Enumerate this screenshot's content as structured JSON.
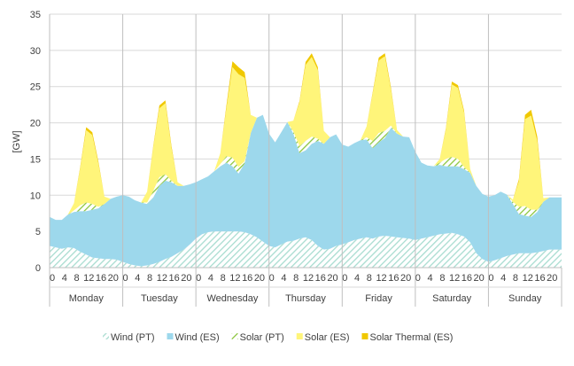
{
  "chart_data": {
    "type": "area",
    "stacked": true,
    "ylabel": "[GW]",
    "ylim": [
      0,
      35
    ],
    "yticks": [
      0,
      5,
      10,
      15,
      20,
      25,
      30,
      35
    ],
    "grid": "horizontal",
    "legend_position": "bottom",
    "days": [
      "Monday",
      "Tuesday",
      "Wednesday",
      "Thursday",
      "Friday",
      "Saturday",
      "Sunday"
    ],
    "hour_ticks": [
      "0",
      "4",
      "8",
      "12",
      "16",
      "20"
    ],
    "hours_per_day": 24,
    "sample_hours": [
      0,
      2,
      4,
      6,
      8,
      10,
      12,
      14,
      16,
      18,
      20,
      22
    ],
    "series": [
      {
        "name": "Wind (PT)",
        "color": "#a8dcd0",
        "pattern": "hatch",
        "values": [
          [
            3.0,
            2.8,
            2.6,
            2.8,
            2.7,
            2.2,
            1.8,
            1.4,
            1.3,
            1.2,
            1.2,
            1.1
          ],
          [
            0.8,
            0.5,
            0.3,
            0.2,
            0.3,
            0.5,
            0.8,
            1.2,
            1.5,
            2.0,
            2.5,
            3.2
          ],
          [
            4.0,
            4.6,
            4.9,
            5.0,
            5.0,
            5.0,
            5.0,
            5.0,
            4.9,
            4.6,
            4.2,
            3.6
          ],
          [
            3.0,
            2.8,
            3.2,
            3.6,
            3.7,
            4.0,
            4.2,
            3.8,
            3.0,
            2.5,
            2.6,
            3.0
          ],
          [
            3.2,
            3.5,
            3.8,
            4.0,
            4.2,
            4.0,
            4.3,
            4.4,
            4.3,
            4.2,
            4.1,
            4.0
          ],
          [
            3.8,
            4.0,
            4.2,
            4.4,
            4.6,
            4.7,
            4.8,
            4.6,
            4.3,
            3.5,
            2.0,
            1.2
          ],
          [
            0.8,
            1.0,
            1.3,
            1.6,
            1.8,
            2.0,
            2.0,
            2.0,
            2.1,
            2.3,
            2.5,
            2.5
          ]
        ]
      },
      {
        "name": "Wind (ES)",
        "color": "#9dd8ec",
        "values": [
          [
            4.0,
            3.8,
            4.0,
            4.5,
            5.0,
            5.6,
            6.0,
            6.6,
            6.9,
            7.6,
            8.3,
            8.7
          ],
          [
            9.2,
            9.3,
            9.0,
            8.8,
            8.5,
            9.2,
            10.5,
            10.8,
            10.3,
            9.3,
            8.8,
            8.3
          ],
          [
            7.8,
            7.6,
            7.7,
            8.3,
            9.0,
            9.5,
            9.0,
            8.0,
            9.5,
            14.0,
            16.5,
            17.5
          ],
          [
            15.5,
            14.5,
            15.5,
            16.5,
            14.8,
            11.8,
            12.0,
            13.3,
            14.5,
            14.6,
            15.4,
            15.4
          ],
          [
            13.8,
            13.2,
            13.4,
            13.6,
            13.5,
            12.5,
            13.0,
            13.5,
            15.0,
            14.3,
            14.0,
            14.0
          ],
          [
            12.2,
            10.5,
            9.9,
            9.6,
            9.6,
            9.3,
            9.2,
            9.4,
            9.3,
            9.6,
            9.3,
            9.0
          ],
          [
            9.0,
            9.0,
            9.2,
            8.5,
            7.0,
            5.4,
            5.2,
            5.0,
            5.6,
            6.8,
            7.2,
            7.2
          ]
        ]
      },
      {
        "name": "Solar (PT)",
        "color": "#8cc63e",
        "pattern": "hatch",
        "values": [
          [
            0,
            0,
            0,
            0,
            0.2,
            0.8,
            1.2,
            0.8,
            0.2,
            0,
            0,
            0
          ],
          [
            0,
            0,
            0,
            0,
            0.2,
            0.9,
            1.2,
            0.9,
            0.2,
            0,
            0,
            0
          ],
          [
            0,
            0,
            0,
            0,
            0.3,
            0.9,
            1.2,
            0.9,
            0.3,
            0,
            0,
            0
          ],
          [
            0,
            0,
            0,
            0,
            0.3,
            1.0,
            1.3,
            1.0,
            0.3,
            0,
            0,
            0
          ],
          [
            0,
            0,
            0,
            0,
            0.3,
            1.0,
            1.3,
            1.0,
            0.3,
            0,
            0,
            0
          ],
          [
            0,
            0,
            0,
            0,
            0.3,
            1.0,
            1.3,
            1.0,
            0.3,
            0,
            0,
            0
          ],
          [
            0,
            0,
            0,
            0,
            0.3,
            1.0,
            1.3,
            1.0,
            0.3,
            0,
            0,
            0
          ]
        ]
      },
      {
        "name": "Solar (ES)",
        "color": "#fff57a",
        "values": [
          [
            0,
            0,
            0,
            0,
            1.0,
            5.0,
            10.0,
            9.5,
            6.0,
            1.0,
            0,
            0
          ],
          [
            0,
            0,
            0,
            0,
            1.5,
            6.0,
            9.5,
            9.8,
            4.5,
            0.5,
            0,
            0
          ],
          [
            0,
            0,
            0,
            0,
            1.5,
            6.5,
            12.5,
            12.8,
            11.5,
            2.5,
            0,
            0
          ],
          [
            0,
            0,
            0,
            0,
            1.5,
            6.0,
            10.5,
            11.0,
            9.5,
            1.8,
            0,
            0
          ],
          [
            0,
            0,
            0,
            0,
            1.5,
            6.5,
            10.0,
            10.3,
            5.0,
            0.5,
            0,
            0
          ],
          [
            0,
            0,
            0,
            0,
            0.5,
            4.0,
            10.0,
            9.8,
            7.5,
            0.5,
            0,
            0
          ],
          [
            0,
            0,
            0,
            0,
            0.3,
            3.5,
            12.0,
            13.0,
            9.5,
            0.5,
            0,
            0
          ]
        ]
      },
      {
        "name": "Solar Thermal (ES)",
        "color": "#f0c800",
        "values": [
          [
            0,
            0,
            0,
            0,
            0,
            0.2,
            0.4,
            0.4,
            0.3,
            0,
            0,
            0
          ],
          [
            0,
            0,
            0,
            0,
            0,
            0.2,
            0.4,
            0.4,
            0.3,
            0,
            0,
            0
          ],
          [
            0,
            0,
            0,
            0,
            0,
            0.4,
            0.8,
            1.0,
            0.8,
            0,
            0,
            0
          ],
          [
            0,
            0,
            0,
            0,
            0,
            0.2,
            0.4,
            0.5,
            0.4,
            0,
            0,
            0
          ],
          [
            0,
            0,
            0,
            0,
            0,
            0.2,
            0.4,
            0.4,
            0.3,
            0,
            0,
            0
          ],
          [
            0,
            0,
            0,
            0,
            0,
            0.2,
            0.4,
            0.4,
            0.3,
            0,
            0,
            0
          ],
          [
            0,
            0,
            0,
            0,
            0,
            0.3,
            0.6,
            0.8,
            0.6,
            0,
            0,
            0
          ]
        ]
      }
    ]
  }
}
